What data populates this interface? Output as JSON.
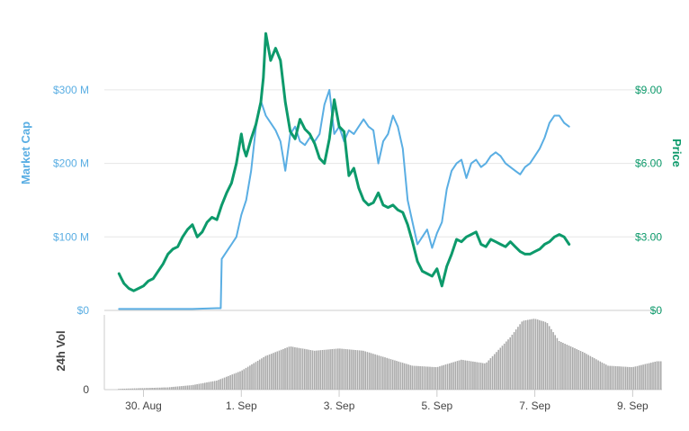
{
  "chart_data": [
    {
      "type": "line",
      "xlabel": "",
      "ylabel": "Market Cap",
      "y2label": "Price",
      "x_range": [
        -0.8,
        10.6
      ],
      "ylim": [
        0,
        410
      ],
      "y2lim": [
        0,
        12.3
      ],
      "grid": true,
      "y_ticks": [
        {
          "value": 0,
          "label": "$0"
        },
        {
          "value": 100,
          "label": "$100 M"
        },
        {
          "value": 200,
          "label": "$200 M"
        },
        {
          "value": 300,
          "label": "$300 M"
        }
      ],
      "y2_ticks": [
        {
          "value": 0,
          "label": "$0"
        },
        {
          "value": 3,
          "label": "$3.00"
        },
        {
          "value": 6,
          "label": "$6.00"
        },
        {
          "value": 9,
          "label": "$9.00"
        }
      ],
      "series": [
        {
          "color": "#5aaee3",
          "axis": "left",
          "points": [
            [
              -0.5,
              2
            ],
            [
              0.3,
              2
            ],
            [
              1.0,
              2
            ],
            [
              1.5,
              3
            ],
            [
              1.58,
              3
            ],
            [
              1.6,
              70
            ],
            [
              1.7,
              80
            ],
            [
              1.8,
              90
            ],
            [
              1.9,
              100
            ],
            [
              2.0,
              130
            ],
            [
              2.1,
              150
            ],
            [
              2.2,
              190
            ],
            [
              2.3,
              250
            ],
            [
              2.35,
              270
            ],
            [
              2.4,
              285
            ],
            [
              2.5,
              265
            ],
            [
              2.6,
              255
            ],
            [
              2.7,
              245
            ],
            [
              2.8,
              230
            ],
            [
              2.9,
              190
            ],
            [
              3.0,
              240
            ],
            [
              3.1,
              250
            ],
            [
              3.2,
              230
            ],
            [
              3.3,
              225
            ],
            [
              3.4,
              235
            ],
            [
              3.5,
              230
            ],
            [
              3.6,
              240
            ],
            [
              3.7,
              280
            ],
            [
              3.8,
              300
            ],
            [
              3.9,
              240
            ],
            [
              4.0,
              250
            ],
            [
              4.1,
              230
            ],
            [
              4.2,
              245
            ],
            [
              4.3,
              240
            ],
            [
              4.4,
              250
            ],
            [
              4.5,
              260
            ],
            [
              4.6,
              250
            ],
            [
              4.7,
              245
            ],
            [
              4.8,
              200
            ],
            [
              4.9,
              230
            ],
            [
              5.0,
              240
            ],
            [
              5.1,
              265
            ],
            [
              5.2,
              250
            ],
            [
              5.3,
              220
            ],
            [
              5.4,
              150
            ],
            [
              5.5,
              120
            ],
            [
              5.6,
              90
            ],
            [
              5.7,
              100
            ],
            [
              5.8,
              110
            ],
            [
              5.9,
              85
            ],
            [
              6.0,
              105
            ],
            [
              6.1,
              120
            ],
            [
              6.2,
              165
            ],
            [
              6.3,
              190
            ],
            [
              6.4,
              200
            ],
            [
              6.5,
              205
            ],
            [
              6.6,
              180
            ],
            [
              6.7,
              200
            ],
            [
              6.8,
              205
            ],
            [
              6.9,
              195
            ],
            [
              7.0,
              200
            ],
            [
              7.1,
              210
            ],
            [
              7.2,
              215
            ],
            [
              7.3,
              210
            ],
            [
              7.4,
              200
            ],
            [
              7.5,
              195
            ],
            [
              7.6,
              190
            ],
            [
              7.7,
              185
            ],
            [
              7.8,
              195
            ],
            [
              7.9,
              200
            ],
            [
              8.0,
              210
            ],
            [
              8.1,
              220
            ],
            [
              8.2,
              235
            ],
            [
              8.3,
              255
            ],
            [
              8.4,
              265
            ],
            [
              8.5,
              265
            ],
            [
              8.6,
              255
            ],
            [
              8.7,
              250
            ]
          ]
        },
        {
          "color": "#0d9a6b",
          "axis": "right",
          "points": [
            [
              -0.5,
              1.5
            ],
            [
              -0.45,
              1.3
            ],
            [
              -0.4,
              1.1
            ],
            [
              -0.3,
              0.9
            ],
            [
              -0.2,
              0.8
            ],
            [
              -0.1,
              0.9
            ],
            [
              0.0,
              1.0
            ],
            [
              0.1,
              1.2
            ],
            [
              0.2,
              1.3
            ],
            [
              0.3,
              1.6
            ],
            [
              0.4,
              1.9
            ],
            [
              0.45,
              2.1
            ],
            [
              0.5,
              2.3
            ],
            [
              0.6,
              2.5
            ],
            [
              0.7,
              2.6
            ],
            [
              0.8,
              3.0
            ],
            [
              0.9,
              3.3
            ],
            [
              1.0,
              3.5
            ],
            [
              1.1,
              3.0
            ],
            [
              1.2,
              3.2
            ],
            [
              1.3,
              3.6
            ],
            [
              1.4,
              3.8
            ],
            [
              1.5,
              3.7
            ],
            [
              1.55,
              4.0
            ],
            [
              1.6,
              4.3
            ],
            [
              1.7,
              4.8
            ],
            [
              1.8,
              5.2
            ],
            [
              1.9,
              6.0
            ],
            [
              2.0,
              7.2
            ],
            [
              2.05,
              6.6
            ],
            [
              2.1,
              6.3
            ],
            [
              2.2,
              7.0
            ],
            [
              2.3,
              7.6
            ],
            [
              2.4,
              8.5
            ],
            [
              2.45,
              9.5
            ],
            [
              2.5,
              11.3
            ],
            [
              2.6,
              10.2
            ],
            [
              2.7,
              10.7
            ],
            [
              2.8,
              10.2
            ],
            [
              2.9,
              8.5
            ],
            [
              3.0,
              7.3
            ],
            [
              3.1,
              7.0
            ],
            [
              3.2,
              7.8
            ],
            [
              3.3,
              7.4
            ],
            [
              3.4,
              7.2
            ],
            [
              3.5,
              6.8
            ],
            [
              3.6,
              6.2
            ],
            [
              3.7,
              6.0
            ],
            [
              3.8,
              7.0
            ],
            [
              3.9,
              8.6
            ],
            [
              4.0,
              7.5
            ],
            [
              4.1,
              7.3
            ],
            [
              4.2,
              5.5
            ],
            [
              4.3,
              5.8
            ],
            [
              4.4,
              5.0
            ],
            [
              4.5,
              4.5
            ],
            [
              4.6,
              4.3
            ],
            [
              4.7,
              4.4
            ],
            [
              4.8,
              4.8
            ],
            [
              4.9,
              4.3
            ],
            [
              5.0,
              4.2
            ],
            [
              5.1,
              4.3
            ],
            [
              5.2,
              4.1
            ],
            [
              5.3,
              4.0
            ],
            [
              5.4,
              3.5
            ],
            [
              5.5,
              2.8
            ],
            [
              5.6,
              2.0
            ],
            [
              5.7,
              1.6
            ],
            [
              5.8,
              1.5
            ],
            [
              5.9,
              1.4
            ],
            [
              6.0,
              1.7
            ],
            [
              6.1,
              1.0
            ],
            [
              6.2,
              1.8
            ],
            [
              6.3,
              2.3
            ],
            [
              6.4,
              2.9
            ],
            [
              6.5,
              2.8
            ],
            [
              6.6,
              3.0
            ],
            [
              6.7,
              3.1
            ],
            [
              6.8,
              3.2
            ],
            [
              6.9,
              2.7
            ],
            [
              7.0,
              2.6
            ],
            [
              7.1,
              2.9
            ],
            [
              7.2,
              2.8
            ],
            [
              7.3,
              2.7
            ],
            [
              7.4,
              2.6
            ],
            [
              7.5,
              2.8
            ],
            [
              7.6,
              2.6
            ],
            [
              7.7,
              2.4
            ],
            [
              7.8,
              2.3
            ],
            [
              7.9,
              2.3
            ],
            [
              8.0,
              2.4
            ],
            [
              8.1,
              2.5
            ],
            [
              8.2,
              2.7
            ],
            [
              8.3,
              2.8
            ],
            [
              8.4,
              3.0
            ],
            [
              8.5,
              3.1
            ],
            [
              8.6,
              3.0
            ],
            [
              8.7,
              2.7
            ]
          ]
        }
      ]
    },
    {
      "type": "bar",
      "xlabel": "",
      "ylabel": "24h Vol",
      "x_range": [
        -0.8,
        10.6
      ],
      "ylim": [
        0,
        100
      ],
      "y_ticks": [
        {
          "value": 0,
          "label": "0"
        }
      ],
      "x_ticks": [
        {
          "value": 0,
          "label": "30. Aug"
        },
        {
          "value": 2,
          "label": "1. Sep"
        },
        {
          "value": 4,
          "label": "3. Sep"
        },
        {
          "value": 6,
          "label": "5. Sep"
        },
        {
          "value": 8,
          "label": "7. Sep"
        },
        {
          "value": 10,
          "label": "9. Sep"
        }
      ],
      "bar_color": "#aaaaaa",
      "x": [
        -0.5,
        0.0,
        0.5,
        1.0,
        1.5,
        2.0,
        2.5,
        3.0,
        3.5,
        4.0,
        4.5,
        5.0,
        5.5,
        6.0,
        6.5,
        7.0,
        7.5,
        7.75,
        8.0,
        8.25,
        8.5,
        9.0,
        9.5,
        10.0,
        10.5,
        10.6
      ],
      "values": [
        1,
        2,
        3,
        6,
        12,
        25,
        45,
        58,
        52,
        55,
        52,
        42,
        32,
        30,
        40,
        35,
        70,
        92,
        95,
        90,
        65,
        50,
        32,
        30,
        38,
        38
      ]
    }
  ]
}
